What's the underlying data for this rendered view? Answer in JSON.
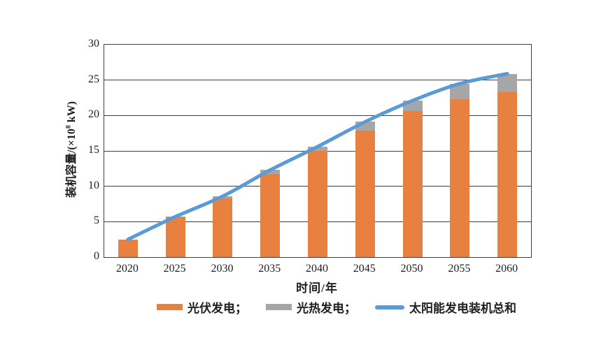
{
  "chart_data": {
    "type": "bar",
    "stacked": true,
    "categories": [
      "2020",
      "2025",
      "2030",
      "2035",
      "2040",
      "2045",
      "2050",
      "2055",
      "2060"
    ],
    "series": [
      {
        "name": "光伏发电",
        "type": "bar",
        "color": "#E8813F",
        "values": [
          2.5,
          5.6,
          8.3,
          11.7,
          15.0,
          17.9,
          20.6,
          22.3,
          23.3
        ]
      },
      {
        "name": "光热发电",
        "type": "bar",
        "color": "#A6A6A6",
        "values": [
          0,
          0.1,
          0.3,
          0.6,
          0.6,
          1.2,
          1.5,
          2.2,
          2.6
        ]
      },
      {
        "name": "太阳能发电装机总和",
        "type": "line",
        "color": "#5B9BD5",
        "values": [
          2.5,
          5.7,
          8.6,
          12.3,
          15.6,
          19.1,
          22.1,
          24.5,
          25.9
        ]
      }
    ],
    "xlabel": "时间/年",
    "ylabel": "装机容量/(×10⁸ kW)",
    "ylim": [
      0,
      30
    ],
    "yticks": [
      0,
      5,
      10,
      15,
      20,
      25,
      30
    ],
    "grid": true,
    "legend_position": "bottom"
  },
  "axes": {
    "x_title": "时间/年",
    "y_title_prefix": "装机容量/(×10",
    "y_title_sup": "8",
    "y_title_suffix": " kW)"
  },
  "legend": {
    "items": [
      {
        "label": "光伏发电；",
        "swatch": "bar",
        "color": "#E8813F"
      },
      {
        "label": "光热发电；",
        "swatch": "bar",
        "color": "#A6A6A6"
      },
      {
        "label": "太阳能发电装机总和",
        "swatch": "line",
        "color": "#5B9BD5"
      }
    ]
  },
  "colors": {
    "grid": "#3F3F3F",
    "text": "#1F1F1F"
  }
}
